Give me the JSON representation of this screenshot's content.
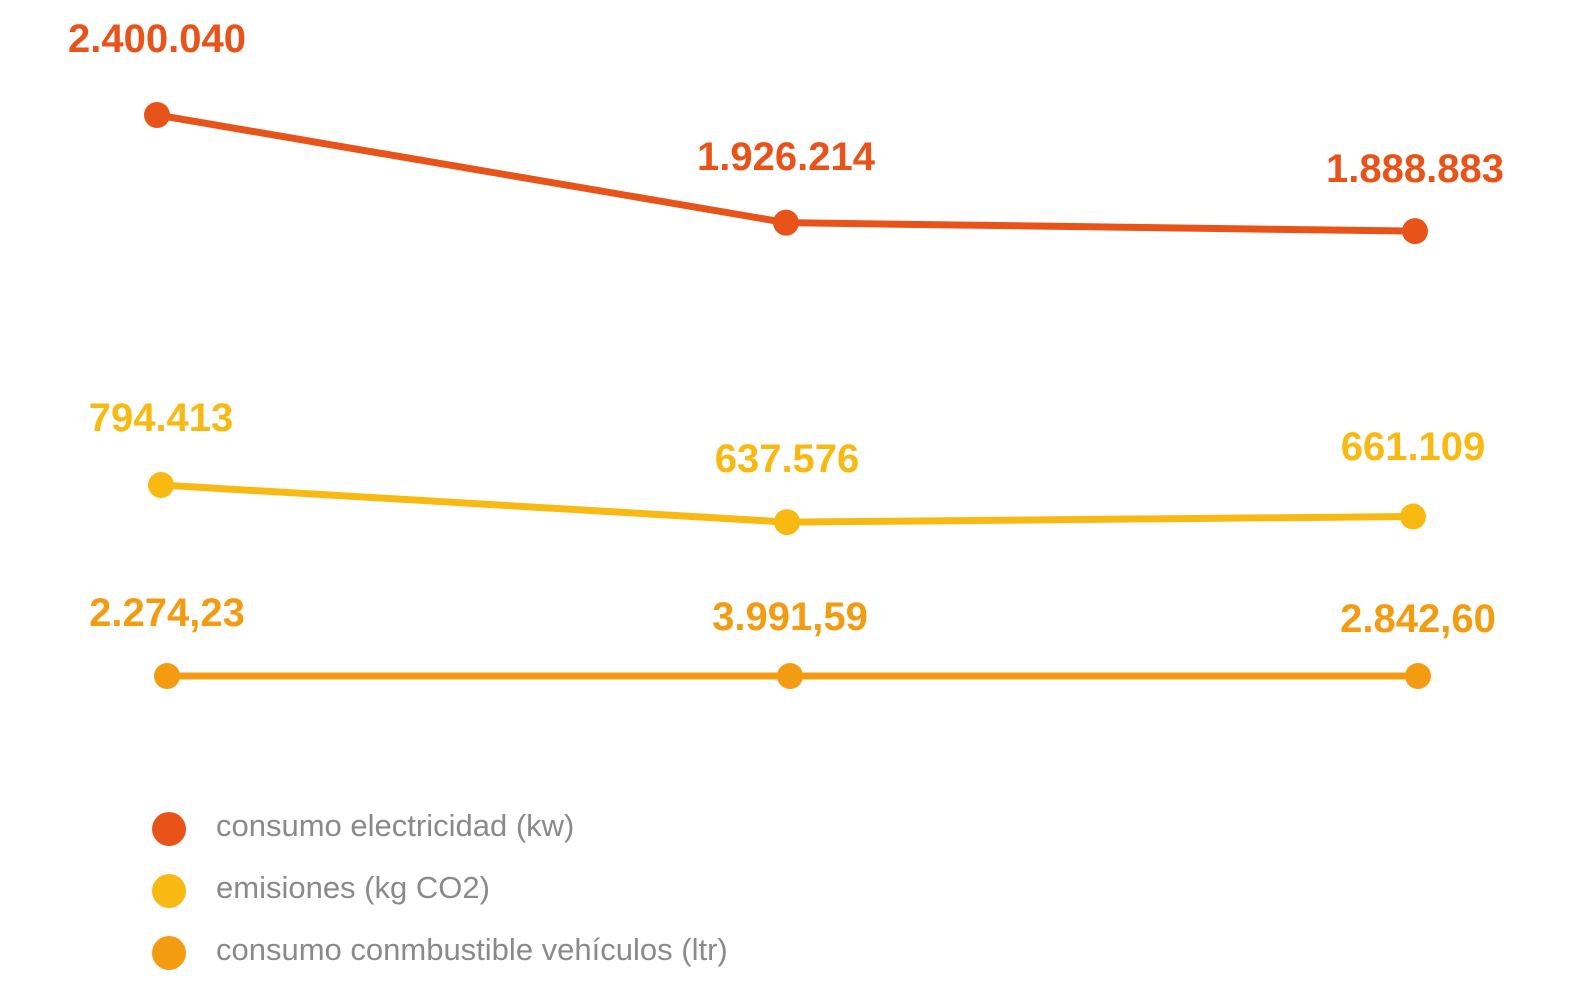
{
  "chart_data": {
    "type": "line",
    "title": "",
    "xlabel": "",
    "ylabel": "",
    "grid": false,
    "legend_position": "bottom-left",
    "x": [
      "",
      "",
      ""
    ],
    "series": [
      {
        "name": "consumo electricidad (kw)",
        "color": "#E85319",
        "values": [
          2400040,
          1926214,
          1888883
        ],
        "labels": [
          "2.400.040",
          "1.926.214",
          "1.888.883"
        ]
      },
      {
        "name": "emisiones (kg CO2)",
        "color": "#F9B913",
        "values": [
          794413,
          637576,
          661109
        ],
        "labels": [
          "794.413",
          "637.576",
          "661.109"
        ]
      },
      {
        "name": "consumo conmbustible vehículos (ltr)",
        "color": "#F39C12",
        "values": [
          2274.23,
          3991.59,
          2842.6
        ],
        "labels": [
          "2.274,23",
          "3.991,59",
          "2.842,60"
        ]
      }
    ]
  }
}
